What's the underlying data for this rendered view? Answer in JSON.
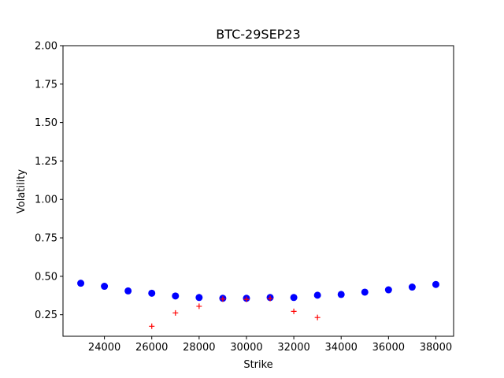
{
  "chart_data": {
    "type": "scatter",
    "title": "BTC-29SEP23",
    "xlabel": "Strike",
    "ylabel": "Volatility",
    "xlim": [
      22250,
      38750
    ],
    "ylim": [
      0.11,
      2.0
    ],
    "xticks": [
      24000,
      26000,
      28000,
      30000,
      32000,
      34000,
      36000,
      38000
    ],
    "yticks": [
      0.25,
      0.5,
      0.75,
      1.0,
      1.25,
      1.5,
      1.75,
      2.0
    ],
    "ytick_labels": [
      "0.25",
      "0.50",
      "0.75",
      "1.00",
      "1.25",
      "1.50",
      "1.75",
      "2.00"
    ],
    "grid": false,
    "series": [
      {
        "marker": "circle",
        "color": "#0000ff",
        "x": [
          23000,
          24000,
          25000,
          26000,
          27000,
          28000,
          29000,
          30000,
          31000,
          32000,
          33000,
          34000,
          35000,
          36000,
          37000,
          38000
        ],
        "y": [
          0.455,
          0.435,
          0.405,
          0.39,
          0.372,
          0.362,
          0.357,
          0.357,
          0.362,
          0.362,
          0.377,
          0.382,
          0.397,
          0.412,
          0.43,
          0.447
        ]
      },
      {
        "marker": "plus",
        "color": "#ff0000",
        "x": [
          26000,
          27000,
          28000,
          29000,
          30000,
          31000,
          32000,
          33000
        ],
        "y": [
          0.175,
          0.262,
          0.305,
          0.352,
          0.35,
          0.355,
          0.272,
          0.232
        ]
      }
    ]
  }
}
